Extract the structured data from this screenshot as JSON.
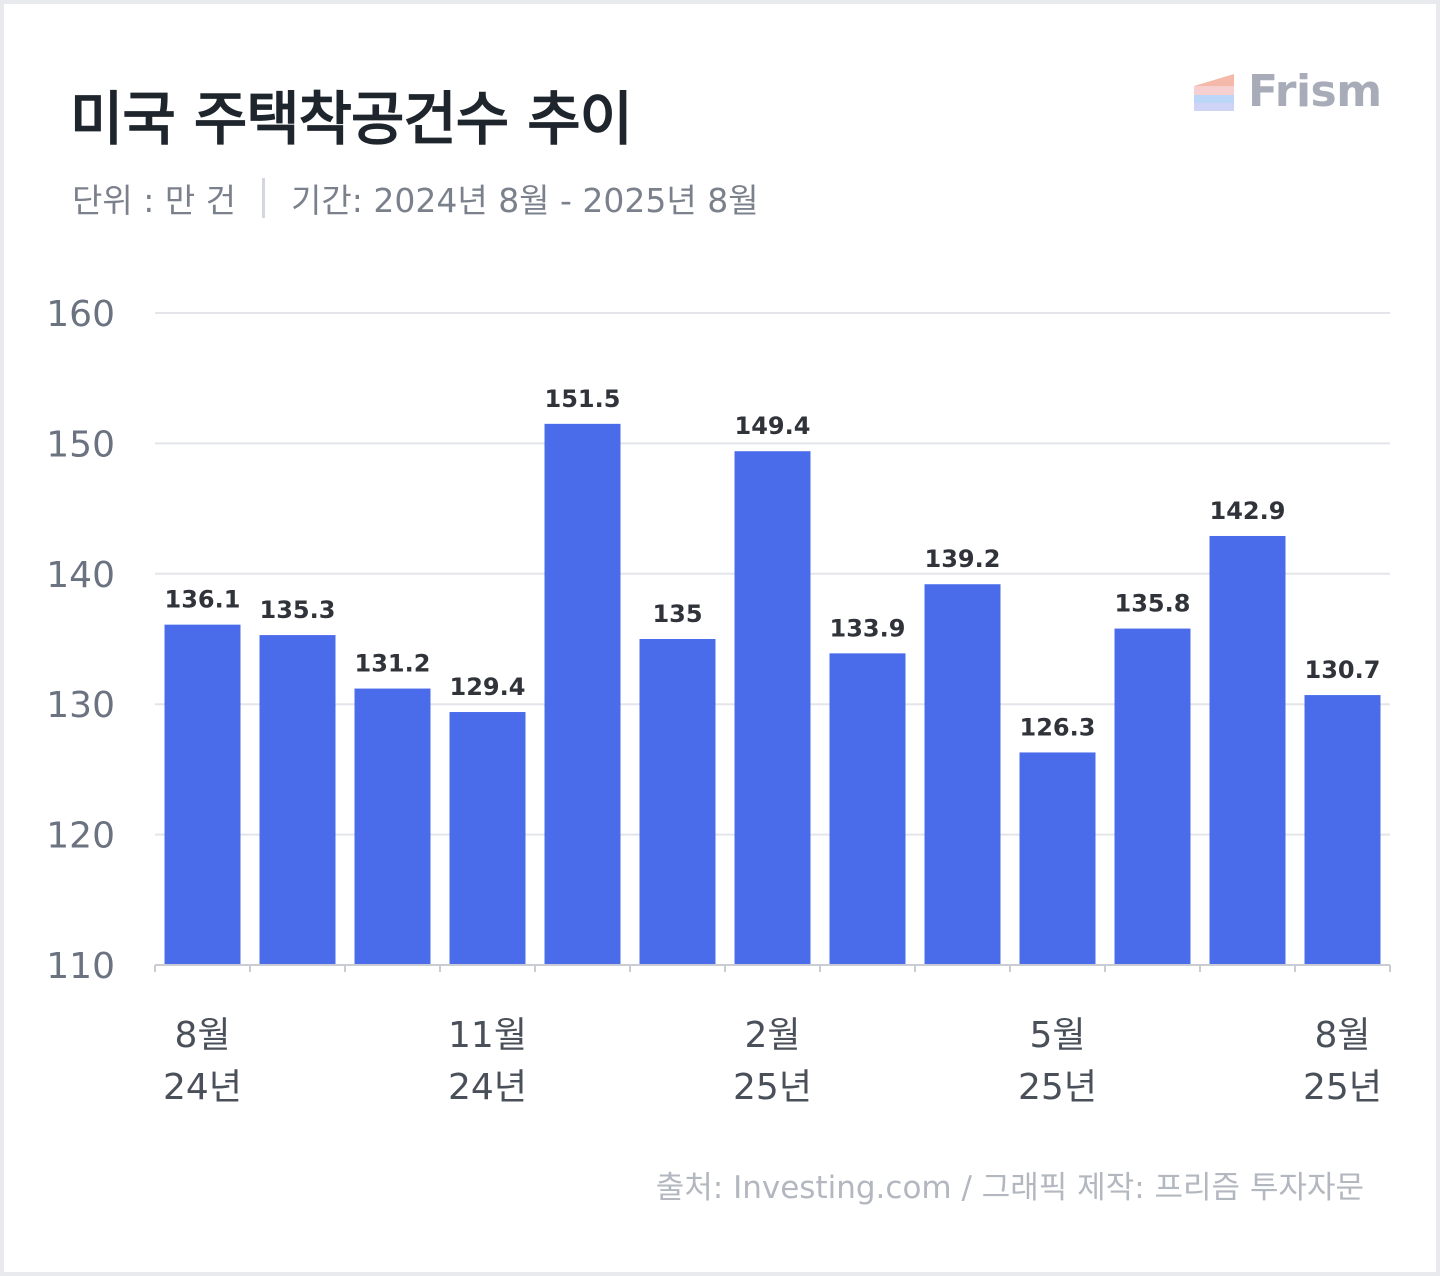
{
  "header": {
    "title": "미국 주택착공건수 추이",
    "unit": "단위 : 만 건",
    "period": "기간: 2024년 8월 - 2025년 8월"
  },
  "brand": {
    "name": "Frism"
  },
  "footer": {
    "source": "출처: Investing.com / 그래픽 제작: 프리즘 투자자문"
  },
  "colors": {
    "bar": "#4a6cea",
    "grid": "#e3e5ea",
    "axis": "#c9ccd3"
  },
  "chart_data": {
    "type": "bar",
    "title": "미국 주택착공건수 추이",
    "ylabel": "단위 : 만 건",
    "ylim": [
      110,
      160
    ],
    "yticks": [
      160,
      150,
      140,
      130,
      120,
      110
    ],
    "grid": true,
    "legend": "none",
    "categories": [
      "2024-08",
      "2024-09",
      "2024-10",
      "2024-11",
      "2024-12",
      "2025-01",
      "2025-02",
      "2025-03",
      "2025-04",
      "2025-05",
      "2025-06",
      "2025-07",
      "2025-08"
    ],
    "values": [
      136.1,
      135.3,
      131.2,
      129.4,
      151.5,
      135,
      149.4,
      133.9,
      139.2,
      126.3,
      135.8,
      142.9,
      130.7
    ],
    "value_labels": [
      "136.1",
      "135.3",
      "131.2",
      "129.4",
      "151.5",
      "135",
      "149.4",
      "133.9",
      "139.2",
      "126.3",
      "135.8",
      "142.9",
      "130.7"
    ],
    "x_tick_labels": [
      {
        "index": 0,
        "month": "8월",
        "year": "24년"
      },
      {
        "index": 3,
        "month": "11월",
        "year": "24년"
      },
      {
        "index": 6,
        "month": "2월",
        "year": "25년"
      },
      {
        "index": 9,
        "month": "5월",
        "year": "25년"
      },
      {
        "index": 12,
        "month": "8월",
        "year": "25년"
      }
    ]
  }
}
